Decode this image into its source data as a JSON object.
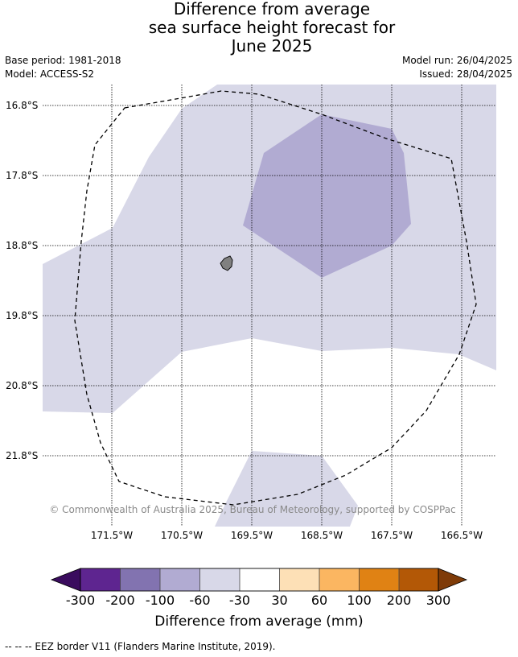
{
  "title": {
    "line1": "Difference from average",
    "line2": "sea surface height forecast for",
    "line3": "June 2025"
  },
  "meta": {
    "base_period": "Base period: 1981-2018",
    "model": "Model: ACCESS-S2",
    "model_run": "Model run: 26/04/2025",
    "issued": "Issued: 28/04/2025"
  },
  "map": {
    "lat_labels": [
      "16.8°S",
      "17.8°S",
      "18.8°S",
      "19.8°S",
      "20.8°S",
      "21.8°S"
    ],
    "lon_labels": [
      "171.5°W",
      "170.5°W",
      "169.5°W",
      "168.5°W",
      "167.5°W",
      "166.5°W"
    ],
    "copyright": "© Commonwealth of Australia 2025, Bureau of Meteorology, supported by COSPPac",
    "fill_colors": {
      "light_band": "#d8d8e8",
      "mid_band": "#b1abd2",
      "island": "#808080"
    }
  },
  "colorbar": {
    "labels": [
      "-300",
      "-200",
      "-100",
      "-60",
      "-30",
      "30",
      "60",
      "100",
      "200",
      "300"
    ],
    "colors": [
      "#3a0c5e",
      "#5e2590",
      "#8273b0",
      "#b1abd2",
      "#d8d8e8",
      "#ffffff",
      "#fde0b6",
      "#fbb661",
      "#e08214",
      "#b35806",
      "#7f3b08"
    ],
    "title": "Difference from average (mm)"
  },
  "footer": {
    "legend_text": "--  --  -- EEZ border V11 (Flanders Marine Institute, 2019)."
  }
}
